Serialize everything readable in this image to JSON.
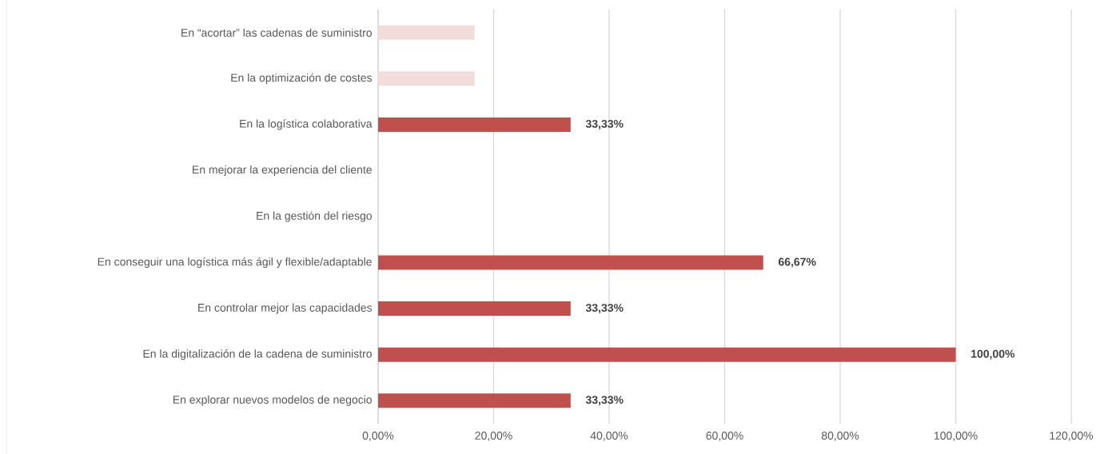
{
  "chart_data": {
    "type": "bar",
    "orientation": "horizontal",
    "categories": [
      "En “acortar” las cadenas de suministro",
      "En la optimización de costes",
      "En la logística colaborativa",
      "En mejorar la experiencia del cliente",
      "En la gestión del riesgo",
      "En conseguir una logística más ágil y flexible/adaptable",
      "En controlar mejor las capacidades",
      "En la digitalización de la cadena de suministro",
      "En explorar nuevos modelos de negocio"
    ],
    "values": [
      16.7,
      16.7,
      33.33,
      0,
      0,
      66.67,
      33.33,
      100,
      33.33
    ],
    "value_labels": [
      null,
      null,
      "33,33%",
      null,
      null,
      "66,67%",
      "33,33%",
      "100,00%",
      "33,33%"
    ],
    "colors": [
      "#f2dcdb",
      "#f2dcdb",
      "#c0504d",
      "#c0504d",
      "#c0504d",
      "#c0504d",
      "#c0504d",
      "#c0504d",
      "#c0504d"
    ],
    "xlim": [
      0,
      120
    ],
    "xticks": [
      {
        "value": 0,
        "label": "0,00%"
      },
      {
        "value": 20,
        "label": "20,00%"
      },
      {
        "value": 40,
        "label": "40,00%"
      },
      {
        "value": 60,
        "label": "60,00%"
      },
      {
        "value": 80,
        "label": "80,00%"
      },
      {
        "value": 100,
        "label": "100,00%"
      },
      {
        "value": 120,
        "label": "120,00%"
      }
    ],
    "grid": "x"
  }
}
